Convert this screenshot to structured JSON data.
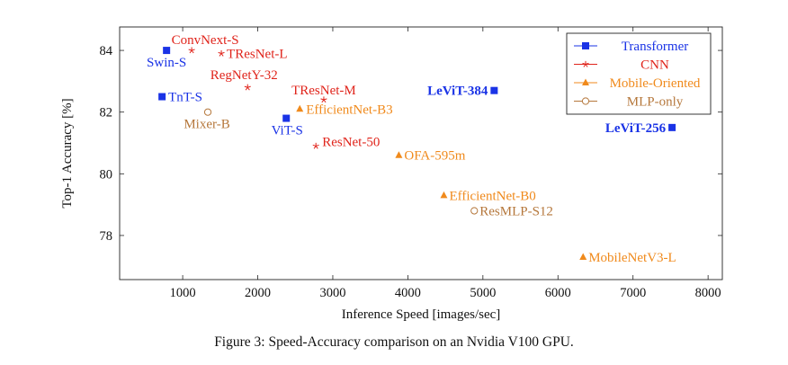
{
  "chart_data": {
    "type": "scatter",
    "title": "",
    "xlabel": "Inference Speed [images/sec]",
    "ylabel": "Top-1 Accuracy [%]",
    "xlim": [
      160,
      8190
    ],
    "ylim": [
      76.57,
      84.76
    ],
    "xticks": [
      1000,
      2000,
      3000,
      4000,
      5000,
      6000,
      7000,
      8000
    ],
    "xtick_labels": [
      "1000",
      "2000",
      "3000",
      "4000",
      "5000",
      "6000",
      "7000",
      "8000"
    ],
    "yticks": [
      78,
      80,
      82,
      84
    ],
    "ytick_labels": [
      "78",
      "80",
      "82",
      "84"
    ],
    "grid": false,
    "legend_position": "top-right",
    "series": [
      {
        "name": "Transformer",
        "marker": "square",
        "color": "#1a33e6",
        "points": [
          {
            "label": "Swin-S",
            "x": 785,
            "y": 84.0,
            "bold": false
          },
          {
            "label": "TnT-S",
            "x": 725,
            "y": 82.5,
            "bold": false
          },
          {
            "label": "ViT-S",
            "x": 2380,
            "y": 81.8,
            "bold": false
          },
          {
            "label": "LeViT-384",
            "x": 5150,
            "y": 82.7,
            "bold": true
          },
          {
            "label": "LeViT-256",
            "x": 7520,
            "y": 81.5,
            "bold": true
          }
        ]
      },
      {
        "name": "CNN",
        "marker": "star",
        "color": "#e0241b",
        "points": [
          {
            "label": "ConvNext-S",
            "x": 1120,
            "y": 84.0,
            "bold": false
          },
          {
            "label": "TResNet-L",
            "x": 1515,
            "y": 83.9,
            "bold": false
          },
          {
            "label": "RegNetY-32",
            "x": 1865,
            "y": 82.8,
            "bold": false
          },
          {
            "label": "TResNet-M",
            "x": 2880,
            "y": 82.4,
            "bold": false
          },
          {
            "label": "ResNet-50",
            "x": 2775,
            "y": 80.9,
            "bold": false
          }
        ]
      },
      {
        "name": "Mobile-Oriented",
        "marker": "triangle",
        "color": "#f08a1c",
        "points": [
          {
            "label": "EfficientNet-B3",
            "x": 2560,
            "y": 82.1,
            "bold": false
          },
          {
            "label": "OFA-595m",
            "x": 3880,
            "y": 80.6,
            "bold": false
          },
          {
            "label": "EfficientNet-B0",
            "x": 4480,
            "y": 79.3,
            "bold": false
          },
          {
            "label": "MobileNetV3-L",
            "x": 6335,
            "y": 77.3,
            "bold": false
          }
        ]
      },
      {
        "name": "MLP-only",
        "marker": "circle",
        "color": "#b5773b",
        "points": [
          {
            "label": "Mixer-B",
            "x": 1335,
            "y": 82.0,
            "bold": false
          },
          {
            "label": "ResMLP-S12",
            "x": 4885,
            "y": 78.8,
            "bold": false
          }
        ]
      }
    ]
  },
  "caption": "Figure 3: Speed-Accuracy comparison on an Nvidia V100 GPU."
}
